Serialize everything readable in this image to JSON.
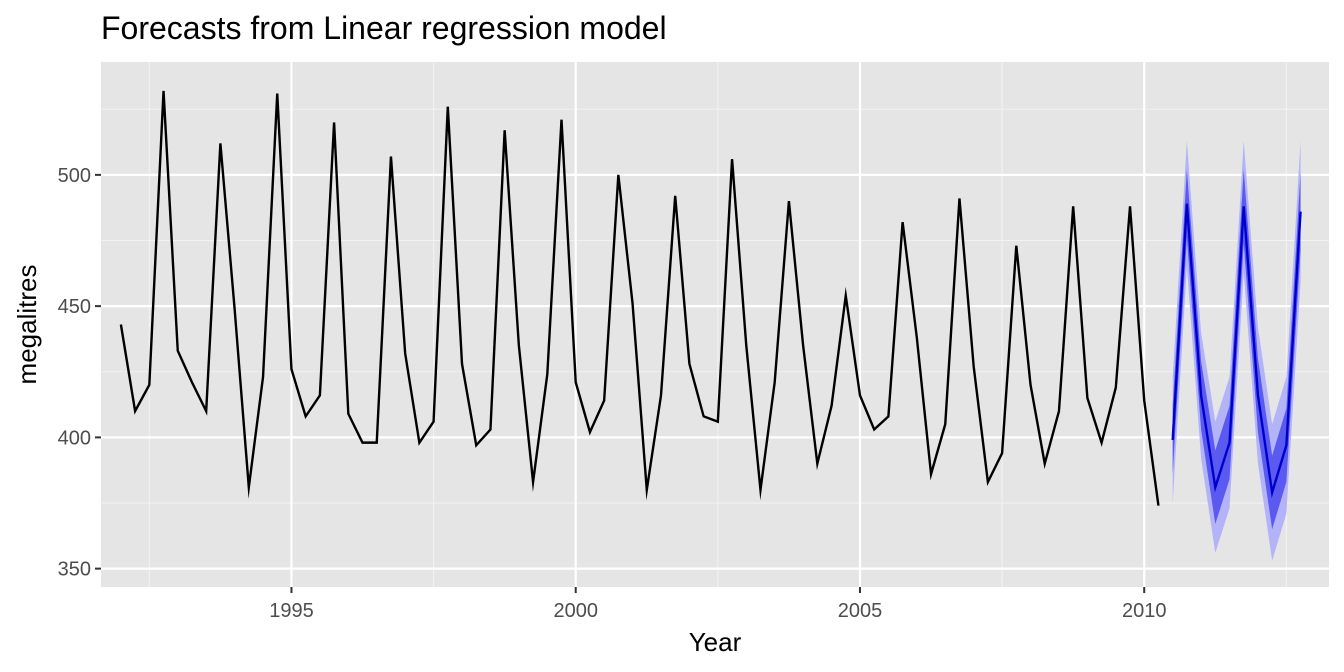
{
  "chart_data": {
    "type": "line",
    "title": "Forecasts from Linear regression model",
    "xlabel": "Year",
    "ylabel": "megalitres",
    "xlim": [
      1991.65,
      2013.25
    ],
    "ylim": [
      343,
      543
    ],
    "x_ticks": [
      1995,
      2000,
      2005,
      2010
    ],
    "x_tick_labels": [
      "1995",
      "2000",
      "2005",
      "2010"
    ],
    "y_ticks": [
      350,
      400,
      450,
      500
    ],
    "y_tick_labels": [
      "350",
      "400",
      "450",
      "500"
    ],
    "grid": true,
    "legend": "none",
    "series": [
      {
        "kind": "history",
        "color": "#000000",
        "start": 1992.0,
        "step": 0.25,
        "values": [
          443,
          410,
          420,
          532,
          433,
          421,
          410,
          512,
          449,
          381,
          423,
          531,
          426,
          408,
          416,
          520,
          409,
          398,
          398,
          507,
          432,
          398,
          406,
          526,
          428,
          397,
          403,
          517,
          435,
          383,
          424,
          521,
          421,
          402,
          414,
          500,
          451,
          380,
          416,
          492,
          428,
          408,
          406,
          506,
          435,
          380,
          421,
          490,
          435,
          390,
          412,
          454,
          416,
          403,
          408,
          482,
          438,
          386,
          405,
          491,
          427,
          383,
          394,
          473,
          420,
          390,
          410,
          488,
          415,
          398,
          419,
          488,
          414,
          374
        ]
      },
      {
        "kind": "forecast",
        "color": "#0000cc",
        "start": 2010.5,
        "step": 0.25,
        "values": [
          399,
          489,
          416,
          381,
          398,
          488,
          416,
          379,
          397,
          486
        ],
        "lo80": [
          386,
          476,
          403,
          367,
          384,
          474,
          402,
          365,
          383,
          471
        ],
        "hi80": [
          412,
          502,
          429,
          395,
          412,
          502,
          430,
          393,
          411,
          501
        ],
        "lo95": [
          375,
          465,
          392,
          356,
          373,
          463,
          390,
          353,
          371,
          459
        ],
        "hi95": [
          423,
          513,
          440,
          406,
          423,
          513,
          442,
          405,
          423,
          513
        ],
        "band80_color": "#5a5af0",
        "band95_color": "#b3b3f8"
      }
    ]
  },
  "colors": {
    "panel_bg": "#e5e5e5",
    "grid_major": "#ffffff",
    "grid_minor": "#f2f2f2",
    "tick_mark": "#333333"
  }
}
